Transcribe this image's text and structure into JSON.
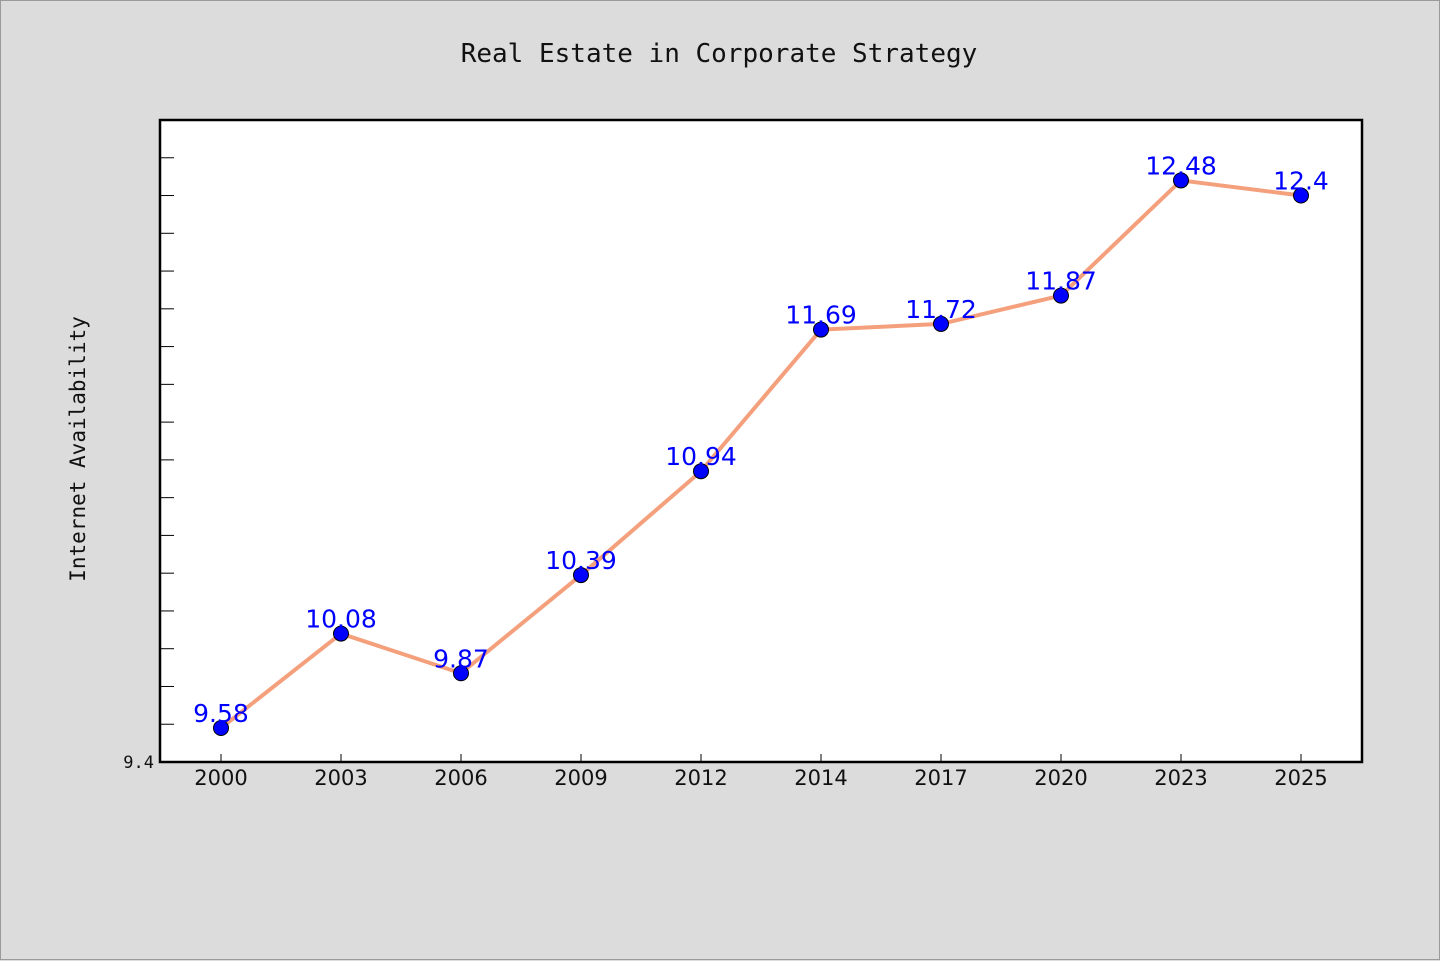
{
  "chart_data": {
    "type": "line",
    "title": "Real Estate in Corporate Strategy",
    "xlabel": "",
    "ylabel": "Internet Availability",
    "categories": [
      "2000",
      "2003",
      "2006",
      "2009",
      "2012",
      "2014",
      "2017",
      "2020",
      "2023",
      "2025"
    ],
    "series": [
      {
        "values": [
          9.58,
          10.08,
          9.87,
          10.39,
          10.94,
          11.69,
          11.72,
          11.87,
          12.48,
          12.4
        ]
      }
    ],
    "data_labels": [
      "9.58",
      "10.08",
      "9.87",
      "10.39",
      "10.94",
      "11.69",
      "11.72",
      "11.87",
      "12.48",
      "12.4"
    ],
    "y_tick_labels": [
      "9.4"
    ],
    "ylim": [
      9.4,
      12.8
    ],
    "grid": false,
    "colors": {
      "line": "#f4a07c",
      "marker": "#0000ff",
      "label": "#0000ff",
      "background": "#dcdcdc",
      "plot": "#ffffff"
    }
  }
}
